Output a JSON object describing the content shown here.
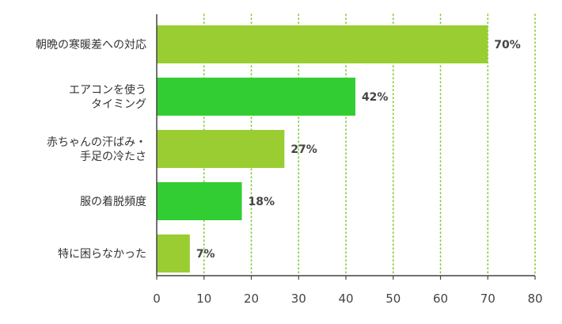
{
  "chart_data": {
    "type": "bar",
    "orientation": "horizontal",
    "categories": [
      [
        "朝晩の寒暖差への対応"
      ],
      [
        "エアコンを使う",
        "タイミング"
      ],
      [
        "赤ちゃんの汗ばみ・",
        "手足の冷たさ"
      ],
      [
        "服の着脱頻度"
      ],
      [
        "特に困らなかった"
      ]
    ],
    "values": [
      70,
      42,
      27,
      18,
      7
    ],
    "value_labels": [
      "70%",
      "42%",
      "27%",
      "18%",
      "7%"
    ],
    "bar_colors": [
      "#9ACD32",
      "#32CD32",
      "#9ACD32",
      "#32CD32",
      "#9ACD32"
    ],
    "xlim": [
      0,
      80
    ],
    "xticks": [
      0,
      10,
      20,
      30,
      40,
      50,
      60,
      70,
      80
    ],
    "xtick_labels": [
      "0",
      "10",
      "20",
      "30",
      "40",
      "50",
      "60",
      "70",
      "80"
    ],
    "grid": "vertical dotted",
    "grid_color": "#7CCD3A",
    "axis_color": "#444444",
    "title": "",
    "xlabel": "",
    "ylabel": ""
  }
}
